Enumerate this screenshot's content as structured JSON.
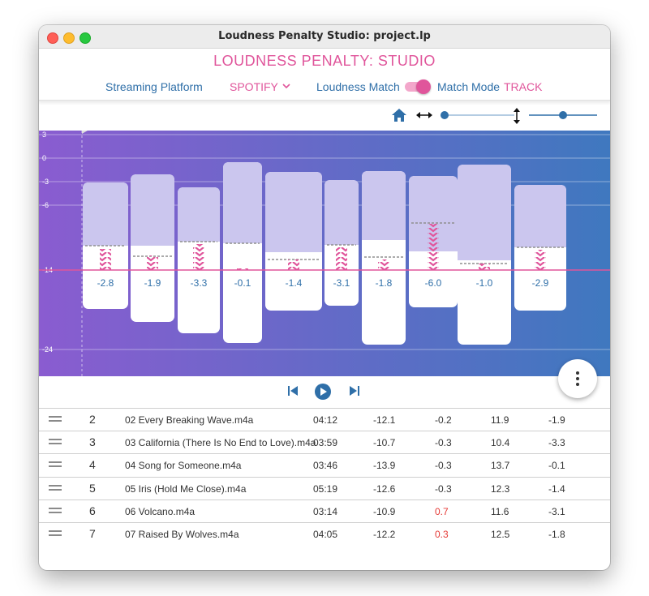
{
  "window": {
    "title": "Loudness Penalty Studio: project.lp"
  },
  "header": {
    "app_title": "LOUDNESS PENALTY: STUDIO",
    "platform_label": "Streaming Platform",
    "platform_value": "SPOTIFY",
    "loudness_match_label": "Loudness Match",
    "loudness_match_on": true,
    "match_mode_label": "Match Mode",
    "match_mode_value": "TRACK"
  },
  "toolbar": {
    "home_icon": "home-icon",
    "hzoom_icon": "horizontal-arrows-icon",
    "vzoom_icon": "vertical-arrows-icon",
    "hzoom_level": 0.0,
    "vzoom_level": 0.5
  },
  "colors": {
    "accent_pink": "#e0559b",
    "accent_blue": "#2f6fa8",
    "gradient_start": "#8a5cd0",
    "gradient_end": "#3f78bf",
    "positive_red": "#e53935"
  },
  "chart_data": {
    "type": "bar",
    "y_ticks": [
      "3",
      "0",
      "-3",
      "-6",
      "-14",
      "-24"
    ],
    "target_line": -14,
    "penalties": [
      "-2.8",
      "-1.9",
      "-3.3",
      "-0.1",
      "-1.4",
      "-3.1",
      "-1.8",
      "-6.0",
      "-1.0",
      "-2.9"
    ]
  },
  "transport": {
    "prev_icon": "skip-back-icon",
    "play_icon": "play-icon",
    "next_icon": "skip-forward-icon"
  },
  "fab": {
    "icon": "more-vertical-icon"
  },
  "table": {
    "rows": [
      {
        "index": "2",
        "name": "02 Every Breaking Wave.m4a",
        "duration": "04:12",
        "lufs": "-12.1",
        "peak": "-0.2",
        "plr": "11.9",
        "penalty": "-1.9",
        "peak_positive": false
      },
      {
        "index": "3",
        "name": "03 California (There Is No End to Love).m4a",
        "duration": "03:59",
        "lufs": "-10.7",
        "peak": "-0.3",
        "plr": "10.4",
        "penalty": "-3.3",
        "peak_positive": false
      },
      {
        "index": "4",
        "name": "04 Song for Someone.m4a",
        "duration": "03:46",
        "lufs": "-13.9",
        "peak": "-0.3",
        "plr": "13.7",
        "penalty": "-0.1",
        "peak_positive": false
      },
      {
        "index": "5",
        "name": "05 Iris (Hold Me Close).m4a",
        "duration": "05:19",
        "lufs": "-12.6",
        "peak": "-0.3",
        "plr": "12.3",
        "penalty": "-1.4",
        "peak_positive": false
      },
      {
        "index": "6",
        "name": "06 Volcano.m4a",
        "duration": "03:14",
        "lufs": "-10.9",
        "peak": "0.7",
        "plr": "11.6",
        "penalty": "-3.1",
        "peak_positive": true
      },
      {
        "index": "7",
        "name": "07 Raised By Wolves.m4a",
        "duration": "04:05",
        "lufs": "-12.2",
        "peak": "0.3",
        "plr": "12.5",
        "penalty": "-1.8",
        "peak_positive": true
      }
    ]
  }
}
